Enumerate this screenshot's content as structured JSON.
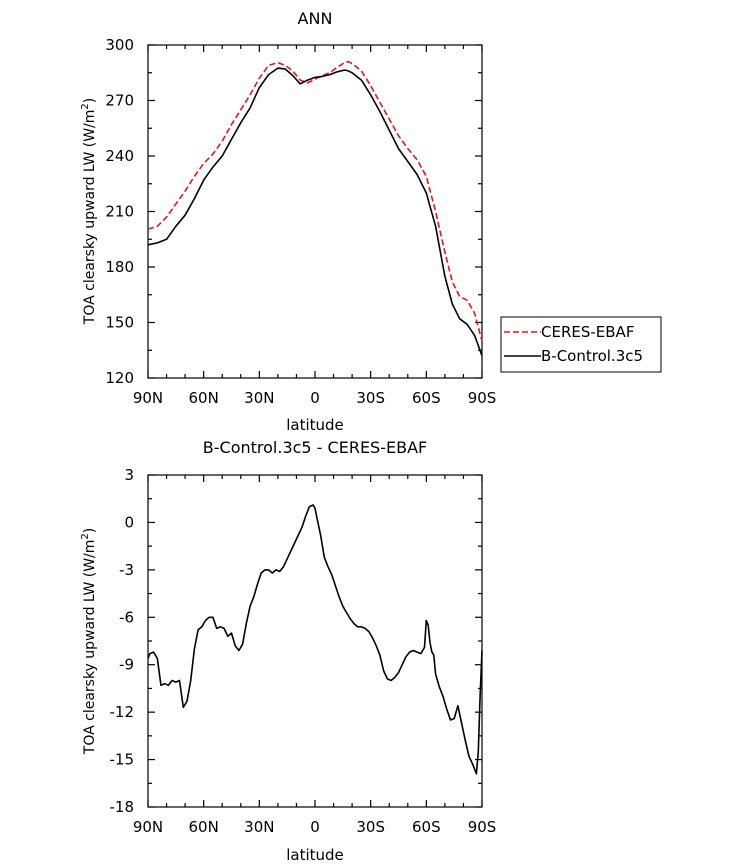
{
  "colors": {
    "axis": "#000000",
    "model": "#000000",
    "observed": "#e8141b",
    "background": "#ffffff"
  },
  "chart_data": [
    {
      "type": "line",
      "title": "ANN",
      "xlabel": "latitude",
      "ylabel": "TOA clearsky upward LW (W/m",
      "ylabel_sup": "2",
      "ylabel_close": ")",
      "xlim": [
        90,
        -90
      ],
      "ylim": [
        120,
        300
      ],
      "x_ticks": [
        90,
        60,
        30,
        0,
        -30,
        -60,
        -90
      ],
      "x_tick_labels": [
        "90N",
        "60N",
        "30N",
        "0",
        "30S",
        "60S",
        "90S"
      ],
      "y_ticks": [
        120,
        150,
        180,
        210,
        240,
        270,
        300
      ],
      "y_tick_labels": [
        "120",
        "150",
        "180",
        "210",
        "240",
        "270",
        "300"
      ],
      "legend": {
        "placement": "right",
        "entries": [
          {
            "label": "CERES-EBAF",
            "style": "dashed",
            "color": "#e8141b"
          },
          {
            "label": "B-Control.3c5",
            "style": "solid",
            "color": "#000000"
          }
        ]
      },
      "series": [
        {
          "name": "CERES-EBAF",
          "style": "dashed",
          "color": "#e8141b",
          "x": [
            90,
            85,
            80,
            75,
            70,
            65,
            60,
            55,
            50,
            45,
            40,
            35,
            30,
            25,
            20,
            16,
            12,
            8,
            4,
            0,
            -4,
            -8,
            -12,
            -16,
            -18,
            -20,
            -25,
            -30,
            -35,
            -40,
            -45,
            -50,
            -55,
            -60,
            -65,
            -70,
            -74,
            -78,
            -82,
            -86,
            -90
          ],
          "values": [
            200.5,
            202,
            207,
            214,
            221,
            229,
            236,
            241,
            248,
            257,
            265,
            273,
            282,
            289,
            290.5,
            289,
            286,
            281,
            279.5,
            281.5,
            283.5,
            285,
            288,
            290.5,
            291,
            290,
            286,
            278,
            269,
            260,
            251,
            244,
            238,
            229,
            210,
            188,
            172,
            164,
            162,
            155,
            140
          ]
        },
        {
          "name": "B-Control.3c5",
          "style": "solid",
          "color": "#000000",
          "x": [
            90,
            85,
            80,
            75,
            70,
            65,
            60,
            55,
            50,
            45,
            40,
            35,
            30,
            25,
            20,
            16,
            12,
            8,
            4,
            0,
            -4,
            -8,
            -12,
            -16,
            -18,
            -20,
            -25,
            -30,
            -35,
            -40,
            -45,
            -50,
            -55,
            -60,
            -65,
            -70,
            -74,
            -78,
            -82,
            -86,
            -90
          ],
          "values": [
            192,
            193,
            195,
            202,
            208,
            217,
            227,
            234,
            240,
            249,
            258,
            266,
            277,
            284,
            287.5,
            287,
            283.5,
            279,
            281,
            282.5,
            283,
            284,
            285.5,
            286.5,
            286,
            285,
            281,
            273,
            264,
            254,
            244,
            237,
            230,
            220,
            202,
            175,
            160,
            152,
            149,
            143,
            132
          ]
        }
      ]
    },
    {
      "type": "line",
      "title": "B-Control.3c5 - CERES-EBAF",
      "xlabel": "latitude",
      "ylabel": "TOA clearsky upward LW (W/m",
      "ylabel_sup": "2",
      "ylabel_close": ")",
      "xlim": [
        90,
        -90
      ],
      "ylim": [
        -18,
        3
      ],
      "x_ticks": [
        90,
        60,
        30,
        0,
        -30,
        -60,
        -90
      ],
      "x_tick_labels": [
        "90N",
        "60N",
        "30N",
        "0",
        "30S",
        "60S",
        "90S"
      ],
      "y_ticks": [
        -18,
        -15,
        -12,
        -9,
        -6,
        -3,
        0,
        3
      ],
      "y_tick_labels": [
        "-18",
        "-15",
        "-12",
        "-9",
        "-6",
        "-3",
        "0",
        "3"
      ],
      "series": [
        {
          "name": "B-Control.3c5 - CERES-EBAF",
          "style": "solid",
          "color": "#000000",
          "x": [
            90,
            89,
            87,
            85,
            83,
            81,
            79,
            77,
            75,
            73,
            71,
            69,
            67,
            65,
            63,
            61,
            59,
            57,
            55,
            53,
            51,
            49,
            47,
            45,
            43,
            41,
            39,
            37,
            35,
            33,
            31,
            29,
            27,
            25,
            23,
            21,
            19,
            17,
            15,
            13,
            11,
            9,
            7,
            5,
            3,
            1,
            0,
            -1,
            -3,
            -5,
            -7,
            -9,
            -11,
            -13,
            -15,
            -17,
            -19,
            -21,
            -23,
            -25,
            -27,
            -29,
            -31,
            -33,
            -35,
            -37,
            -39,
            -41,
            -43,
            -45,
            -47,
            -49,
            -51,
            -53,
            -55,
            -57,
            -59,
            -60,
            -61,
            -62,
            -63,
            -64,
            -65,
            -67,
            -69,
            -71,
            -73,
            -75,
            -77,
            -79,
            -81,
            -83,
            -85,
            -87,
            -88,
            -89,
            -90
          ],
          "values": [
            -8.6,
            -8.3,
            -8.2,
            -8.6,
            -10.3,
            -10.2,
            -10.3,
            -10.0,
            -10.1,
            -10.0,
            -11.7,
            -11.3,
            -10.0,
            -8.0,
            -6.8,
            -6.6,
            -6.2,
            -6.0,
            -6.0,
            -6.7,
            -6.6,
            -6.7,
            -7.2,
            -7.0,
            -7.8,
            -8.1,
            -7.7,
            -6.4,
            -5.3,
            -4.7,
            -3.9,
            -3.2,
            -3.0,
            -3.0,
            -3.2,
            -3.0,
            -3.1,
            -2.8,
            -2.3,
            -1.8,
            -1.3,
            -0.8,
            -0.3,
            0.4,
            1.0,
            1.1,
            0.9,
            0.3,
            -0.8,
            -2.2,
            -2.8,
            -3.3,
            -4.0,
            -4.7,
            -5.3,
            -5.7,
            -6.1,
            -6.4,
            -6.6,
            -6.6,
            -6.7,
            -6.9,
            -7.3,
            -7.8,
            -8.4,
            -9.4,
            -9.9,
            -10.0,
            -9.8,
            -9.5,
            -9.0,
            -8.5,
            -8.2,
            -8.1,
            -8.2,
            -8.3,
            -7.9,
            -6.2,
            -6.5,
            -7.6,
            -8.2,
            -8.4,
            -9.6,
            -10.4,
            -11.0,
            -11.8,
            -12.5,
            -12.4,
            -11.6,
            -12.7,
            -13.8,
            -14.8,
            -15.3,
            -15.9,
            -14.5,
            -11.0,
            -8.1
          ]
        }
      ]
    }
  ]
}
